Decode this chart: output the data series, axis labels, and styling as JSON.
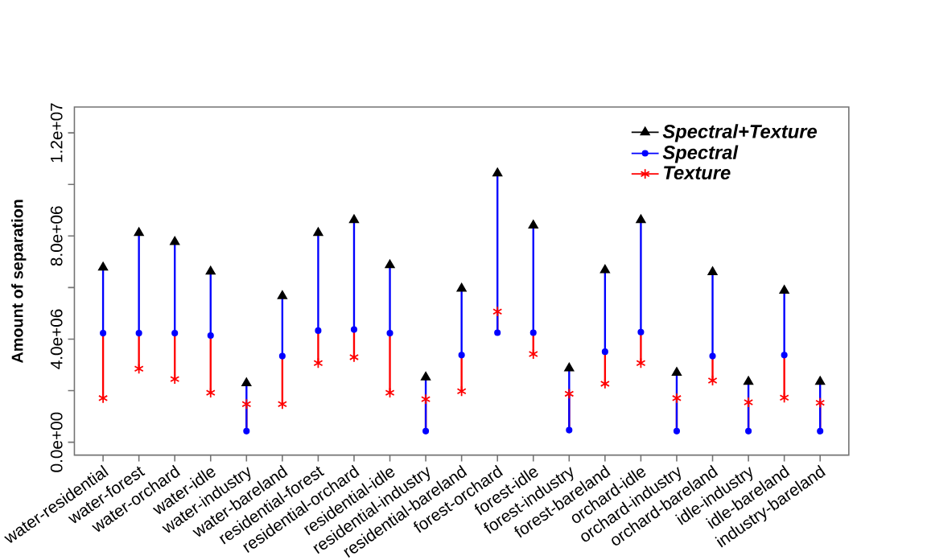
{
  "chart_data": {
    "type": "scatter",
    "ylabel": "Amount of separation",
    "categories": [
      "water-residential",
      "water-forest",
      "water-orchard",
      "water-idle",
      "water-industry",
      "water-bareland",
      "residential-forest",
      "residential-orchard",
      "residential-idle",
      "residential-industry",
      "residential-bareland",
      "forest-orchard",
      "forest-idle",
      "forest-industry",
      "forest-bareland",
      "orchard-idle",
      "orchard-industry",
      "orchard-bareland",
      "idle-industry",
      "idle-bareland",
      "industry-bareland"
    ],
    "series": [
      {
        "name": "Spectral+Texture",
        "color": "#000000",
        "marker": "triangle",
        "values": [
          6780000,
          8120000,
          7770000,
          6620000,
          2290000,
          5670000,
          8120000,
          8620000,
          6870000,
          2520000,
          5960000,
          10430000,
          8410000,
          2870000,
          6680000,
          8620000,
          2700000,
          6600000,
          2350000,
          5880000,
          2350000
        ]
      },
      {
        "name": "Spectral",
        "color": "#0000ff",
        "marker": "circle",
        "values": [
          4230000,
          4230000,
          4230000,
          4140000,
          430000,
          3340000,
          4330000,
          4370000,
          4230000,
          430000,
          3380000,
          4250000,
          4250000,
          470000,
          3510000,
          4270000,
          430000,
          3340000,
          430000,
          3380000,
          430000
        ]
      },
      {
        "name": "Texture",
        "color": "#ff0000",
        "marker": "cross",
        "values": [
          1710000,
          2850000,
          2450000,
          1920000,
          1480000,
          1480000,
          3070000,
          3300000,
          1920000,
          1670000,
          1980000,
          5070000,
          3420000,
          1880000,
          2270000,
          3070000,
          1710000,
          2390000,
          1550000,
          1730000,
          1530000
        ]
      }
    ],
    "ylim": [
      -500000,
      13000000
    ],
    "yticks": [
      {
        "value": 0,
        "label": "0.0e+00"
      },
      {
        "value": 2000000,
        "label": null
      },
      {
        "value": 4000000,
        "label": "4.0e+06"
      },
      {
        "value": 6000000,
        "label": null
      },
      {
        "value": 8000000,
        "label": "8.0e+06"
      },
      {
        "value": 10000000,
        "label": null
      },
      {
        "value": 12000000,
        "label": "1.2e+07"
      }
    ],
    "legend": "top right"
  }
}
